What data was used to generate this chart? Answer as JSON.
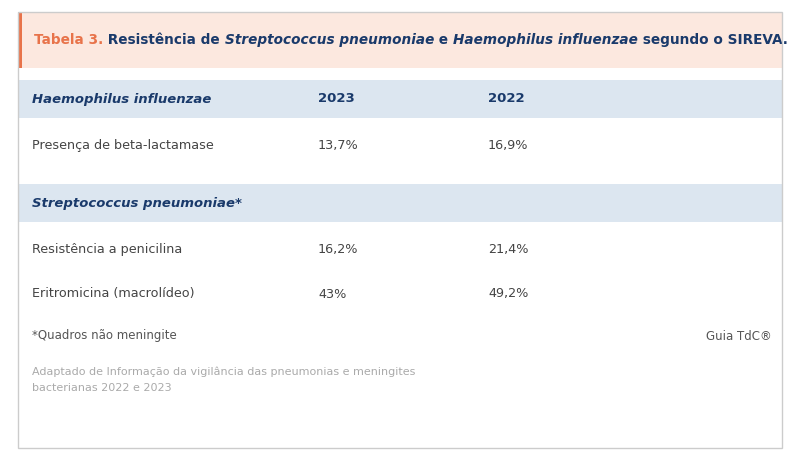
{
  "title_label": "Tabela 3.",
  "title_rest_1": " Resistência de ",
  "title_italic1": "Streptococcus pneumoniae",
  "title_rest_2": " e ",
  "title_italic2": "Haemophilus influenzae",
  "title_rest_3": " segundo o SIREVA.",
  "title_bg_color": "#fce8df",
  "title_border_color": "#e8734a",
  "title_text_color_label": "#e8734a",
  "title_text_color_bold": "#1a3a6b",
  "header1_text": "Haemophilus influenzae",
  "header2_text": "2023",
  "header3_text": "2022",
  "header_bg_color": "#dce6f0",
  "header_text_color": "#1a3a6b",
  "row1_label": "Presença de beta-lactamase",
  "row1_val1": "13,7%",
  "row1_val2": "16,9%",
  "header2_section_text": "Streptococcus pneumoniae*",
  "header2_section_bg": "#dce6f0",
  "header2_section_text_color": "#1a3a6b",
  "row2_label": "Resistência a penicilina",
  "row2_val1": "16,2%",
  "row2_val2": "21,4%",
  "row3_label": "Eritromicina (macrolídeo)",
  "row3_val1": "43%",
  "row3_val2": "49,2%",
  "footnote_left": "*Quadros não meningite",
  "footnote_right": "Guia TdC®",
  "source_line1": "Adaptado de Informação da vigilância das pneumonias e meningites",
  "source_line2": "bacterianas 2022 e 2023",
  "bg_color": "#ffffff",
  "row_text_color": "#444444",
  "footnote_color": "#555555",
  "source_color": "#aaaaaa",
  "border_color": "#cccccc",
  "fig_w": 8.0,
  "fig_h": 4.58,
  "dpi": 100
}
